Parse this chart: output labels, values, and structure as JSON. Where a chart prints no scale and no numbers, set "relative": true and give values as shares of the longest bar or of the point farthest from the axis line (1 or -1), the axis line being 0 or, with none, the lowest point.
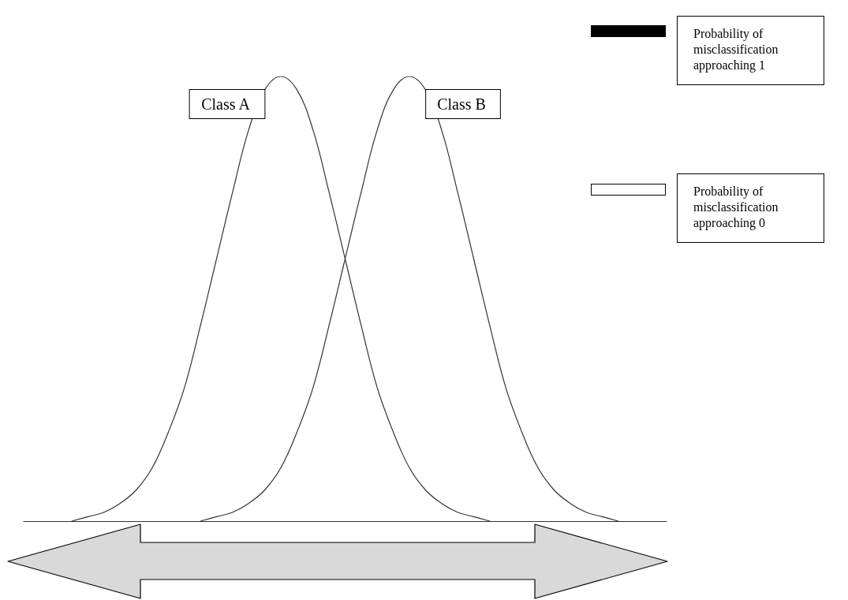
{
  "chart_data": {
    "type": "line",
    "relative": true,
    "grid": false,
    "legend": false,
    "marker": "none",
    "line_style": "solid",
    "categories": [
      null,
      null,
      null,
      null,
      null,
      null,
      null,
      null,
      null,
      null,
      null,
      null,
      null,
      null,
      null,
      null,
      null,
      null,
      null,
      null,
      null,
      null,
      null,
      null,
      null,
      null,
      null,
      null,
      null,
      null,
      null,
      null,
      null,
      null,
      null,
      null,
      null,
      null,
      null,
      null,
      null
    ],
    "series": [
      {
        "name": "Class A",
        "color": "#333333",
        "values": [
          null,
          null,
          null,
          0,
          0.01,
          0.02,
          0.04,
          0.07,
          0.12,
          0.2,
          0.3,
          0.44,
          0.59,
          0.74,
          0.88,
          0.97,
          1,
          0.97,
          0.88,
          0.74,
          0.59,
          0.44,
          0.3,
          0.2,
          0.12,
          0.07,
          0.04,
          0.02,
          0.01,
          0,
          null,
          null,
          null,
          null,
          null,
          null,
          null,
          null,
          null,
          null,
          null
        ]
      },
      {
        "name": "Class B",
        "color": "#333333",
        "values": [
          null,
          null,
          null,
          null,
          null,
          null,
          null,
          null,
          null,
          null,
          null,
          0,
          0.01,
          0.02,
          0.04,
          0.07,
          0.12,
          0.2,
          0.3,
          0.44,
          0.59,
          0.74,
          0.88,
          0.97,
          1,
          0.97,
          0.88,
          0.74,
          0.59,
          0.44,
          0.3,
          0.2,
          0.12,
          0.07,
          0.04,
          0.02,
          0.01,
          0,
          null,
          null,
          null
        ]
      }
    ],
    "annotations": [
      "Probability of misclassification approaching 1",
      "Probability of misclassification approaching 0"
    ]
  }
}
